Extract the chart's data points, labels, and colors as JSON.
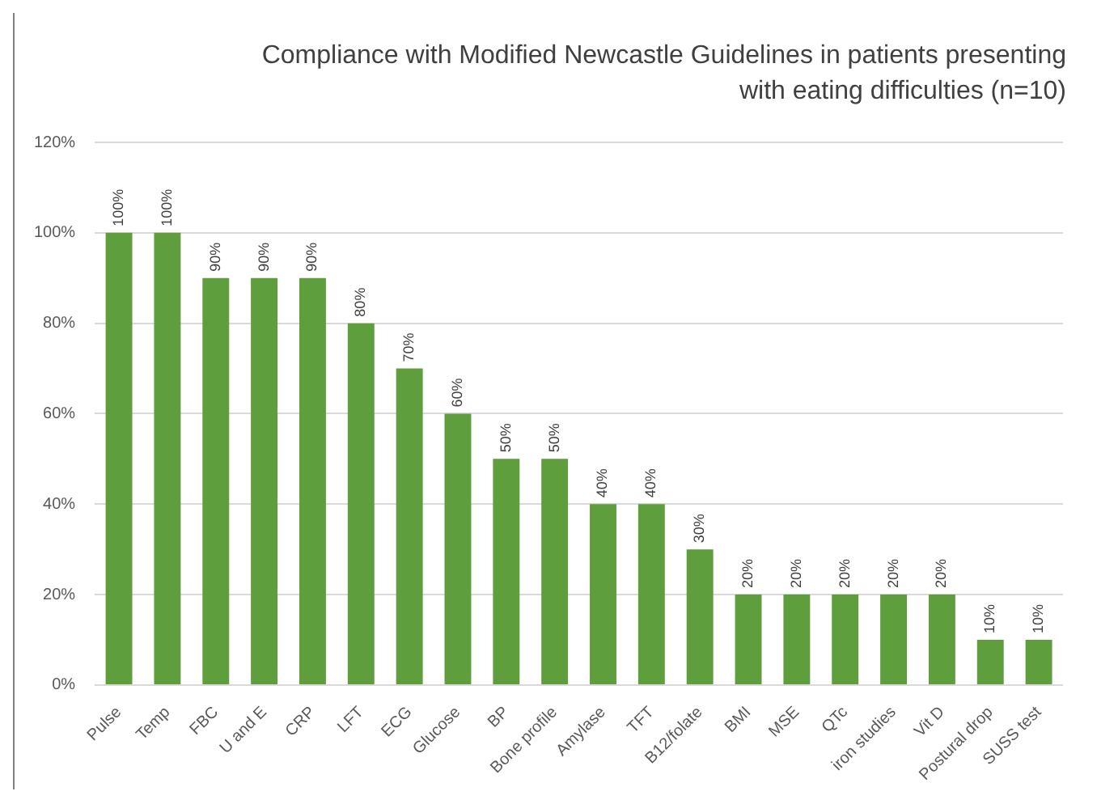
{
  "chart_data": {
    "type": "bar",
    "title": "Compliance with Modified Newcastle Guidelines in patients presenting with eating difficulties (n=10)",
    "categories": [
      "Pulse",
      "Temp",
      "FBC",
      "U and E",
      "CRP",
      "LFT",
      "ECG",
      "Glucose",
      "BP",
      "Bone profile",
      "Amylase",
      "TFT",
      "B12/folate",
      "BMI",
      "MSE",
      "QTc",
      "iron studies",
      "Vit D",
      "Postural drop",
      "SUSS test"
    ],
    "values": [
      100,
      100,
      90,
      90,
      90,
      80,
      70,
      60,
      50,
      50,
      40,
      40,
      30,
      20,
      20,
      20,
      20,
      20,
      10,
      10
    ],
    "value_labels": [
      "100%",
      "100%",
      "90%",
      "90%",
      "90%",
      "80%",
      "70%",
      "60%",
      "50%",
      "50%",
      "40%",
      "40%",
      "30%",
      "20%",
      "20%",
      "20%",
      "20%",
      "20%",
      "10%",
      "10%"
    ],
    "color": "#5e9e3c",
    "ylim": [
      0,
      120
    ],
    "yticks": [
      {
        "value": 0,
        "label": "0%"
      },
      {
        "value": 20,
        "label": "20%"
      },
      {
        "value": 40,
        "label": "40%"
      },
      {
        "value": 60,
        "label": "60%"
      },
      {
        "value": 80,
        "label": "80%"
      },
      {
        "value": 100,
        "label": "100%"
      },
      {
        "value": 120,
        "label": "120%"
      }
    ],
    "grid": "y",
    "legend": false
  }
}
